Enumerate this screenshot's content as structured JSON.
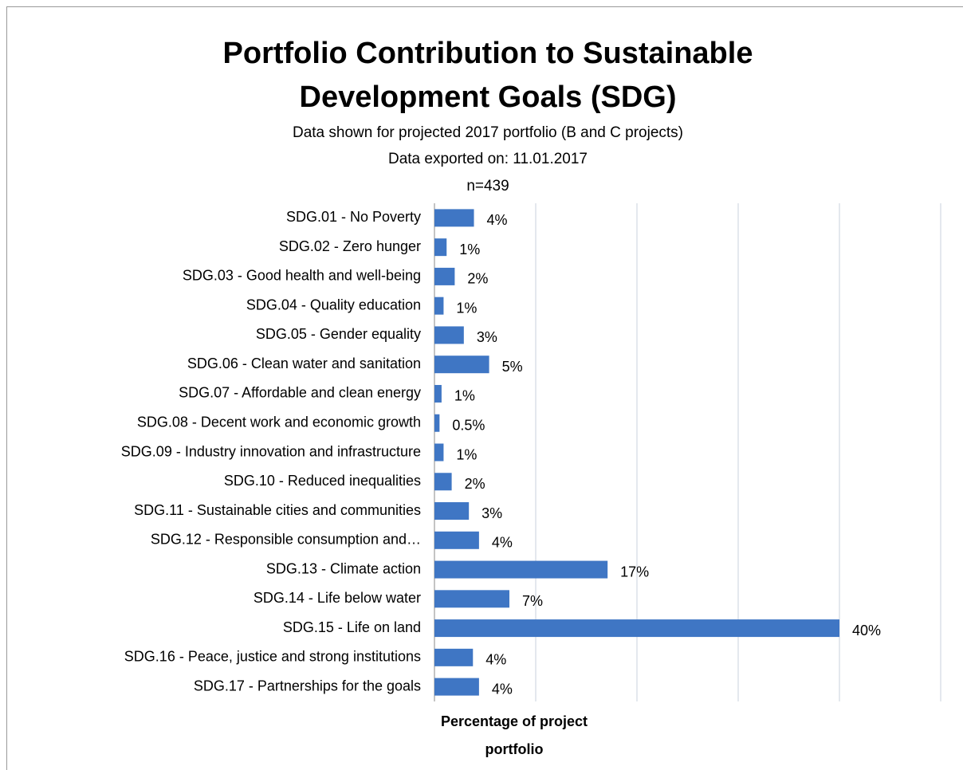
{
  "chart_data": {
    "type": "bar",
    "orientation": "horizontal",
    "title": "Portfolio Contribution to Sustainable Development Goals (SDG)",
    "subtitles": [
      "Data shown for projected 2017 portfolio (B and C projects)",
      "Data exported on: 11.01.2017",
      "n=439"
    ],
    "x_label": "Percentage of project portfolio",
    "categories": [
      "SDG.01 - No Poverty",
      "SDG.02 - Zero hunger",
      "SDG.03 - Good health and well-being",
      "SDG.04 - Quality education",
      "SDG.05 - Gender equality",
      "SDG.06 - Clean water and sanitation",
      "SDG.07 - Affordable and clean energy",
      "SDG.08 - Decent work and economic growth",
      "SDG.09 - Industry innovation and infrastructure",
      "SDG.10 - Reduced inequalities",
      "SDG.11 - Sustainable cities and communities",
      "SDG.12 - Responsible consumption and…",
      "SDG.13 - Climate action",
      "SDG.14 - Life below water",
      "SDG.15 - Life on land",
      "SDG.16 - Peace, justice and strong institutions",
      "SDG.17 - Partnerships for the goals"
    ],
    "values": [
      3.9,
      1.2,
      2.0,
      0.9,
      2.9,
      5.4,
      0.7,
      0.5,
      0.9,
      1.7,
      3.4,
      4.4,
      17.1,
      7.4,
      40.0,
      3.8,
      4.4
    ],
    "value_labels": [
      "4%",
      "1%",
      "2%",
      "1%",
      "3%",
      "5%",
      "1%",
      "0.5%",
      "1%",
      "2%",
      "3%",
      "4%",
      "17%",
      "7%",
      "40%",
      "4%",
      "4%"
    ],
    "color": "#3f76c4",
    "xlim": [
      0,
      50
    ],
    "xticks": [
      0,
      10,
      20,
      30,
      40,
      50
    ],
    "grid": true
  }
}
